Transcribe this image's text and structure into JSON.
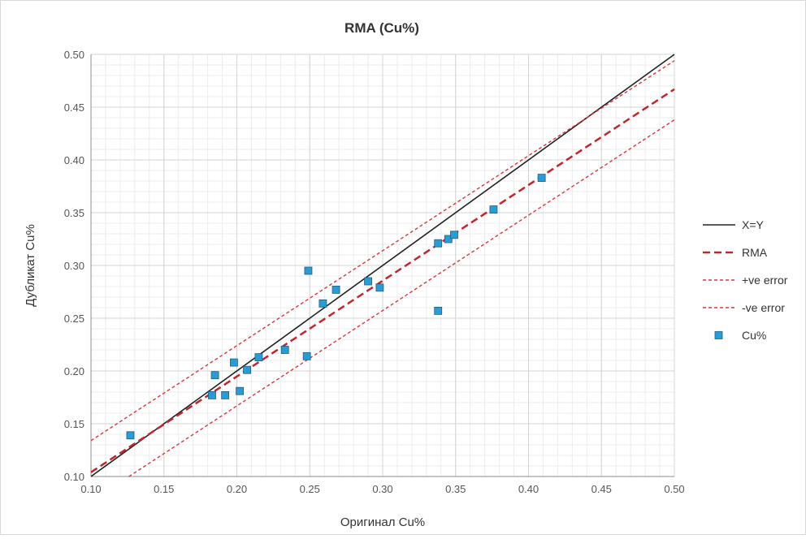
{
  "chart_data": {
    "type": "scatter",
    "title": "RMA (Cu%)",
    "xlabel": "Оригинал Cu%",
    "ylabel": "Дубликат Cu%",
    "xlim": [
      0.1,
      0.5
    ],
    "ylim": [
      0.1,
      0.5
    ],
    "xticks": [
      "0.10",
      "0.15",
      "0.20",
      "0.25",
      "0.30",
      "0.35",
      "0.40",
      "0.45",
      "0.50"
    ],
    "yticks": [
      "0.10",
      "0.15",
      "0.20",
      "0.25",
      "0.30",
      "0.35",
      "0.40",
      "0.45",
      "0.50"
    ],
    "grid": true,
    "legend_position": "right",
    "series": [
      {
        "name": "X=Y",
        "kind": "line",
        "style": "solid",
        "color": "#222222",
        "x": [
          0.1,
          0.5
        ],
        "y": [
          0.1,
          0.5
        ]
      },
      {
        "name": "RMA",
        "kind": "line",
        "style": "dashed",
        "color": "#c0262c",
        "x": [
          0.1,
          0.5
        ],
        "y": [
          0.104,
          0.467
        ]
      },
      {
        "name": "+ve error",
        "kind": "line",
        "style": "dotted",
        "color": "#d9383e",
        "x": [
          0.1,
          0.5
        ],
        "y": [
          0.134,
          0.494
        ]
      },
      {
        "name": "-ve error",
        "kind": "line",
        "style": "dotted",
        "color": "#d9383e",
        "x": [
          0.126,
          0.5
        ],
        "y": [
          0.1,
          0.438
        ]
      },
      {
        "name": "Cu%",
        "kind": "points",
        "color": "#2b9bd3",
        "x": [
          0.127,
          0.183,
          0.185,
          0.192,
          0.198,
          0.202,
          0.207,
          0.215,
          0.233,
          0.248,
          0.249,
          0.259,
          0.268,
          0.29,
          0.298,
          0.338,
          0.338,
          0.345,
          0.349,
          0.376,
          0.409
        ],
        "y": [
          0.139,
          0.177,
          0.196,
          0.177,
          0.208,
          0.181,
          0.201,
          0.213,
          0.22,
          0.214,
          0.295,
          0.264,
          0.277,
          0.285,
          0.279,
          0.257,
          0.321,
          0.325,
          0.329,
          0.353,
          0.383
        ]
      }
    ]
  }
}
